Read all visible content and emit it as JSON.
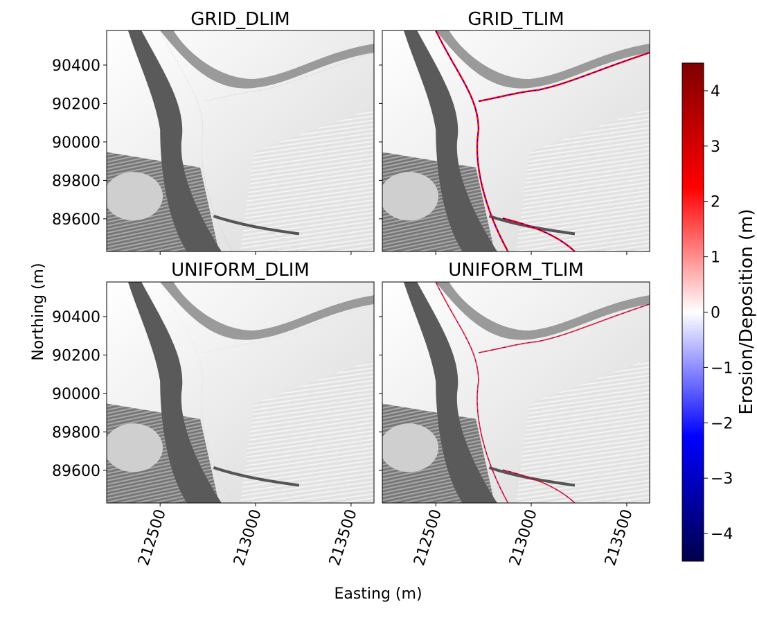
{
  "figure": {
    "xlabel": "Easting (m)",
    "ylabel": "Northing (m)",
    "colorbar_label": "Erosion/Deposition (m)"
  },
  "chart_data": {
    "type": "heatmap",
    "panels": [
      {
        "title": "GRID_DLIM",
        "change_intensity": 0.12
      },
      {
        "title": "GRID_TLIM",
        "change_intensity": 1.0
      },
      {
        "title": "UNIFORM_DLIM",
        "change_intensity": 0.08
      },
      {
        "title": "UNIFORM_TLIM",
        "change_intensity": 0.7
      }
    ],
    "x_ticks": [
      "212500",
      "213000",
      "213500"
    ],
    "x_tick_values": [
      212500,
      213000,
      213500
    ],
    "xlim": [
      212220,
      213620
    ],
    "y_ticks": [
      "90400",
      "90200",
      "90000",
      "89800",
      "89600"
    ],
    "y_tick_values": [
      90400,
      90200,
      90000,
      89800,
      89600
    ],
    "ylim": [
      89430,
      90580
    ],
    "colorbar": {
      "colormap": "seismic",
      "range": [
        -4.5,
        4.5
      ],
      "ticks": [
        "4",
        "3",
        "2",
        "1",
        "0",
        "−1",
        "−2",
        "−3",
        "−4"
      ],
      "tick_values": [
        4,
        3,
        2,
        1,
        0,
        -1,
        -2,
        -3,
        -4
      ]
    },
    "background": "hillshade (grayscale)",
    "colors": {
      "deposition": "#ff0000",
      "erosion": "#0000ff",
      "lake": "#cfcfcf"
    }
  }
}
